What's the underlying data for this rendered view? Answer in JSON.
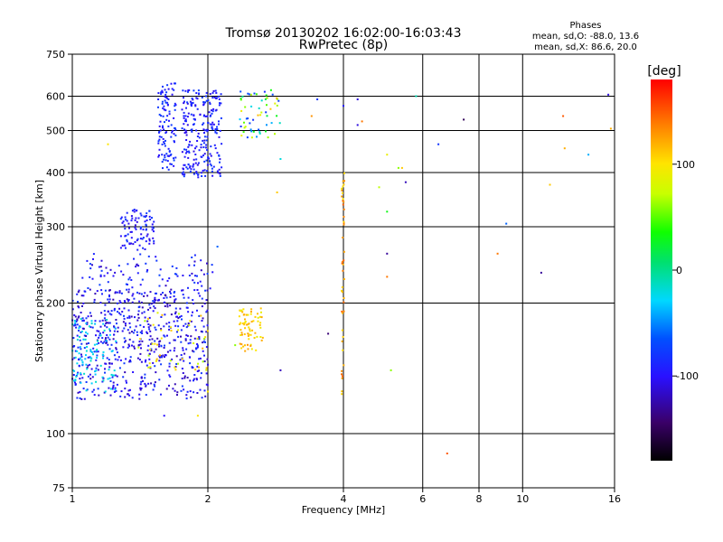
{
  "chart_data": {
    "type": "scatter",
    "title": "Tromsø 20130202 16:02:00-16:03:43",
    "subtitle": "RwPretec (8p)",
    "xlabel": "Frequency [MHz]",
    "ylabel": "Stationary phase Virtual Height [km]",
    "x_scale": "log",
    "y_scale": "log",
    "xlim": [
      1,
      16
    ],
    "ylim": [
      75,
      750
    ],
    "x_ticks": [
      1,
      2,
      4,
      6,
      8,
      10,
      16
    ],
    "x_tick_labels": [
      "1",
      "2",
      "4",
      "6",
      "8",
      "10",
      "16"
    ],
    "y_ticks": [
      75,
      100,
      200,
      300,
      400,
      500,
      600,
      750
    ],
    "y_tick_labels": [
      "75",
      "100",
      "200",
      "300",
      "400",
      "500",
      "600",
      "750"
    ],
    "grid": true,
    "info": {
      "heading": "Phases",
      "line1": "mean, sd,O: -88.0, 13.6",
      "line2": "mean, sd,X: 86.6, 20.0"
    },
    "colorbar": {
      "label": "[deg]",
      "range": [
        -180,
        180
      ],
      "ticks": [
        -100,
        0,
        100
      ],
      "tick_labels": [
        "-100",
        "0",
        "100"
      ]
    },
    "clusters": [
      {
        "id": "E-layer-low",
        "x": [
          1.0,
          2.0
        ],
        "y": [
          120,
          215
        ],
        "count": 620,
        "phase": [
          -125,
          -75
        ],
        "seed": 11
      },
      {
        "id": "E-low-cyan-edge",
        "x": [
          1.0,
          1.25
        ],
        "y": [
          125,
          185
        ],
        "count": 90,
        "phase": [
          -40,
          -15
        ],
        "seed": 12
      },
      {
        "id": "E-mixed-yellow",
        "x": [
          1.4,
          2.0
        ],
        "y": [
          140,
          190
        ],
        "count": 45,
        "phase": [
          60,
          120
        ],
        "seed": 13
      },
      {
        "id": "E-upper",
        "x": [
          1.05,
          2.05
        ],
        "y": [
          200,
          260
        ],
        "count": 110,
        "phase": [
          -120,
          -70
        ],
        "seed": 14
      },
      {
        "id": "Es-cluster",
        "x": [
          1.28,
          1.52
        ],
        "y": [
          265,
          330
        ],
        "count": 90,
        "phase": [
          -110,
          -75
        ],
        "seed": 15
      },
      {
        "id": "F-col-a",
        "x": [
          1.55,
          1.7
        ],
        "y": [
          400,
          660
        ],
        "count": 110,
        "phase": [
          -105,
          -70
        ],
        "seed": 16
      },
      {
        "id": "F-col-b",
        "x": [
          1.75,
          2.15
        ],
        "y": [
          390,
          620
        ],
        "count": 240,
        "phase": [
          -110,
          -75
        ],
        "seed": 17
      },
      {
        "id": "F-col-c",
        "x": [
          2.35,
          2.9
        ],
        "y": [
          480,
          620
        ],
        "count": 60,
        "phase": [
          -100,
          120
        ],
        "seed": 18
      },
      {
        "id": "X-yellow-blob",
        "x": [
          2.35,
          2.65
        ],
        "y": [
          155,
          195
        ],
        "count": 70,
        "phase": [
          85,
          130
        ],
        "seed": 19
      },
      {
        "id": "line-4MHz",
        "x": [
          3.96,
          4.02
        ],
        "y": [
          120,
          400
        ],
        "count": 45,
        "phase": [
          100,
          150
        ],
        "seed": 20
      }
    ],
    "points": [
      {
        "x": 4.3,
        "y": 590,
        "phase": -110
      },
      {
        "x": 4.4,
        "y": 525,
        "phase": 140
      },
      {
        "x": 4.3,
        "y": 515,
        "phase": -110
      },
      {
        "x": 3.4,
        "y": 540,
        "phase": 130
      },
      {
        "x": 4.0,
        "y": 570,
        "phase": -95
      },
      {
        "x": 5.0,
        "y": 440,
        "phase": 90
      },
      {
        "x": 5.3,
        "y": 410,
        "phase": 60
      },
      {
        "x": 5.5,
        "y": 380,
        "phase": -120
      },
      {
        "x": 4.8,
        "y": 370,
        "phase": 70
      },
      {
        "x": 5.0,
        "y": 325,
        "phase": 30
      },
      {
        "x": 5.4,
        "y": 410,
        "phase": 110
      },
      {
        "x": 5.0,
        "y": 260,
        "phase": -130
      },
      {
        "x": 5.0,
        "y": 230,
        "phase": 140
      },
      {
        "x": 5.1,
        "y": 140,
        "phase": 60
      },
      {
        "x": 5.8,
        "y": 600,
        "phase": -10
      },
      {
        "x": 6.5,
        "y": 465,
        "phase": -80
      },
      {
        "x": 7.4,
        "y": 530,
        "phase": -150
      },
      {
        "x": 9.2,
        "y": 305,
        "phase": -60
      },
      {
        "x": 8.8,
        "y": 260,
        "phase": 140
      },
      {
        "x": 11.0,
        "y": 235,
        "phase": -130
      },
      {
        "x": 11.5,
        "y": 375,
        "phase": 110
      },
      {
        "x": 12.3,
        "y": 540,
        "phase": 150
      },
      {
        "x": 12.4,
        "y": 455,
        "phase": 120
      },
      {
        "x": 14.0,
        "y": 440,
        "phase": -40
      },
      {
        "x": 15.5,
        "y": 605,
        "phase": -110
      },
      {
        "x": 15.7,
        "y": 505,
        "phase": 120
      },
      {
        "x": 6.8,
        "y": 90,
        "phase": 150
      },
      {
        "x": 3.7,
        "y": 170,
        "phase": -140
      },
      {
        "x": 2.9,
        "y": 430,
        "phase": -20
      },
      {
        "x": 2.85,
        "y": 360,
        "phase": 110
      },
      {
        "x": 3.5,
        "y": 590,
        "phase": -80
      },
      {
        "x": 2.1,
        "y": 270,
        "phase": -60
      },
      {
        "x": 1.6,
        "y": 110,
        "phase": -100
      },
      {
        "x": 1.9,
        "y": 110,
        "phase": 100
      },
      {
        "x": 2.0,
        "y": 125,
        "phase": 100
      },
      {
        "x": 2.3,
        "y": 160,
        "phase": 60
      },
      {
        "x": 2.9,
        "y": 140,
        "phase": -120
      },
      {
        "x": 1.2,
        "y": 465,
        "phase": 100
      }
    ]
  }
}
